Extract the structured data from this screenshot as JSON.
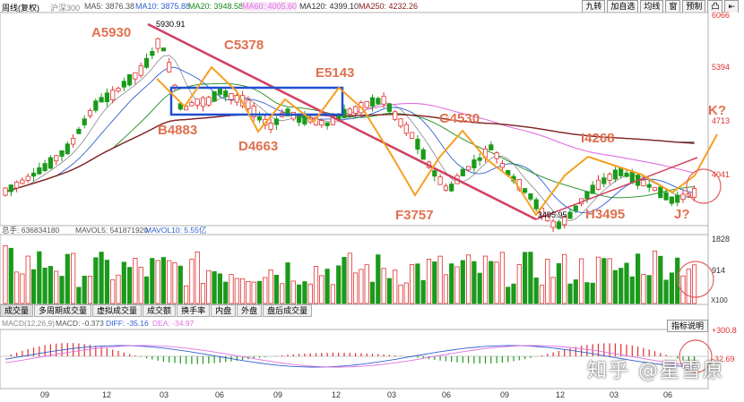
{
  "header": {
    "title": "周线(复权)",
    "index_name": "沪深300",
    "ma5": "MA5: 3876.38",
    "ma10": "MA10: 3875.88",
    "ma20": "MA20: 3948.58",
    "ma60": "MA60: 4005.60",
    "ma120": "MA120: 4399.10",
    "ma250": "MA250: 4232.26",
    "buttons": [
      "九转",
      "加自选",
      "均线",
      "窗",
      "预制",
      "凸",
      "⇤"
    ]
  },
  "colors": {
    "up": "#e03030",
    "down": "#1a9a1a",
    "ma5": "#888888",
    "ma10": "#3060d0",
    "ma20": "#1a8a1a",
    "ma60": "#e070e0",
    "ma120": "#333333",
    "ma250": "#8a2020",
    "annot": "#f5a020",
    "label": "#e07050",
    "trend": "#d04060",
    "box": "#2050d0"
  },
  "price_axis": [
    "6066",
    "5394",
    "4713",
    "4041"
  ],
  "volume_axis": [
    "1828",
    "914",
    "X100"
  ],
  "macd_axis": [
    "+300.8",
    "-32.69"
  ],
  "x_ticks": [
    "09",
    "12",
    "03",
    "06",
    "09",
    "12",
    "03",
    "06",
    "09",
    "12",
    "03",
    "06"
  ],
  "volume_header": {
    "total": "总手: 636834180",
    "mavol5": "MAVOL5: 541871920",
    "mavol10": "MAVOL10: 5.55亿"
  },
  "indicator_tabs": [
    "成交量",
    "多周期成交量",
    "虚拟成交量",
    "成交额",
    "换手率",
    "内盘",
    "外盘",
    "盘后成交量"
  ],
  "macd_header": {
    "name": "MACD(12,26,9)",
    "macd": "MACD: -0.373",
    "diff": "DIFF: -35.16",
    "dea": "DEA: -34.97"
  },
  "help_button": "指标说明",
  "watermark": "知乎 @星雪原",
  "chart_data": {
    "type": "candlestick",
    "title": "",
    "price_range": [
      3400,
      6150
    ],
    "high_label": "5930.91",
    "low_label": "3495.95",
    "wave_points": [
      {
        "label": "A5930",
        "value": 5930
      },
      {
        "label": "B4883",
        "value": 4883
      },
      {
        "label": "C5378",
        "value": 5378
      },
      {
        "label": "D4663",
        "value": 4663
      },
      {
        "label": "E5143",
        "value": 5143
      },
      {
        "label": "F3757",
        "value": 3757
      },
      {
        "label": "G4530",
        "value": 4530
      },
      {
        "label": "H3495",
        "value": 3495
      },
      {
        "label": "I4268",
        "value": 4268
      },
      {
        "label": "J?",
        "value": null
      },
      {
        "label": "K?",
        "value": null
      }
    ]
  }
}
